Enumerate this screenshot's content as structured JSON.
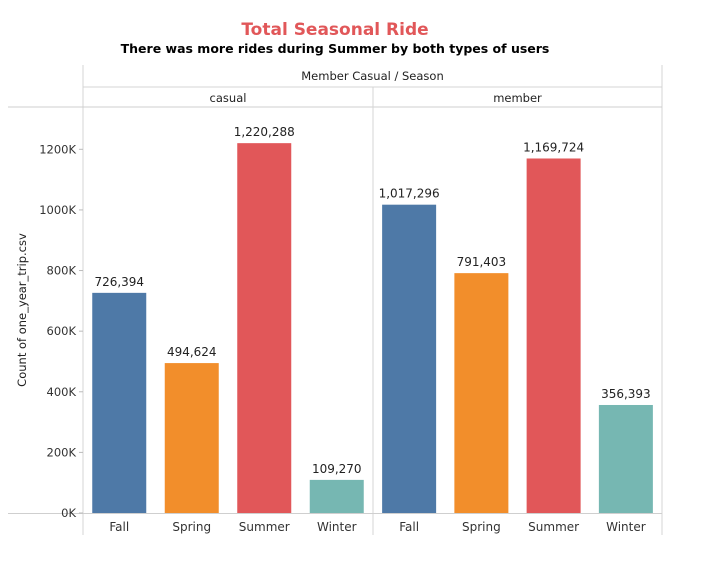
{
  "chart_data": {
    "type": "bar",
    "title": "Total Seasonal Ride",
    "subtitle": "There was more rides during Summer by both types of users",
    "column_header": "Member Casual / Season",
    "ylabel": "Count of one_year_trip.csv",
    "ylim": [
      0,
      1300000
    ],
    "yticks": [
      0,
      200000,
      400000,
      600000,
      800000,
      1000000,
      1200000
    ],
    "ytick_labels": [
      "0K",
      "200K",
      "400K",
      "600K",
      "800K",
      "1000K",
      "1200K"
    ],
    "categories": [
      "Fall",
      "Spring",
      "Summer",
      "Winter"
    ],
    "category_colors": [
      "#4e79a7",
      "#f28e2b",
      "#e15759",
      "#76b7b2"
    ],
    "title_color": "#e15759",
    "grid": false,
    "panels": [
      {
        "name": "casual",
        "values": [
          726394,
          494624,
          1220288,
          109270
        ],
        "labels": [
          "726,394",
          "494,624",
          "1,220,288",
          "109,270"
        ]
      },
      {
        "name": "member",
        "values": [
          1017296,
          791403,
          1169724,
          356393
        ],
        "labels": [
          "1,017,296",
          "791,403",
          "1,169,724",
          "356,393"
        ]
      }
    ]
  }
}
